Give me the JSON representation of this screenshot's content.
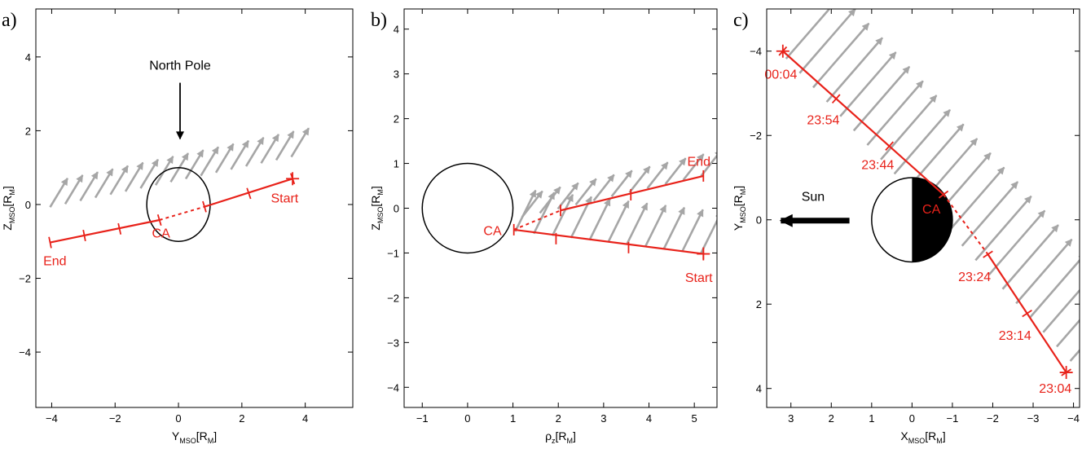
{
  "colors": {
    "trajectory": "#e8221a",
    "field": "#a6a6a6",
    "planet_stroke": "#000000",
    "nightside": "#000000"
  },
  "chart_data": [
    {
      "type": "vector-trajectory",
      "panel": "a)",
      "xlabel": {
        "main": "Y",
        "sub": "MSO",
        "unit": "[R",
        "unit_sub": "M",
        "close": "]"
      },
      "ylabel": {
        "main": "Z",
        "sub": "MSO",
        "unit": "[R",
        "unit_sub": "M",
        "close": "]"
      },
      "xlim": [
        -4.5,
        5.5
      ],
      "ylim": [
        -5.5,
        5.3
      ],
      "xticks": [
        -4,
        -2,
        0,
        2,
        4
      ],
      "xtick_labels": [
        "−4",
        "−2",
        "0",
        "2",
        "4"
      ],
      "yticks": [
        -4,
        -2,
        0,
        2,
        4
      ],
      "ytick_labels": [
        "−4",
        "−2",
        "0",
        "2",
        "4"
      ],
      "planet": {
        "cx": 0,
        "cy": 0,
        "r": 1,
        "style": "outline"
      },
      "trajectory_solid": [
        [
          [
            -4.05,
            -1.03
          ],
          [
            -0.6,
            -0.42
          ]
        ],
        [
          [
            0.82,
            -0.06
          ],
          [
            3.6,
            0.7
          ]
        ]
      ],
      "trajectory_dashed": [
        [
          -0.6,
          -0.42
        ],
        [
          0.82,
          -0.06
        ]
      ],
      "ticks": [
        [
          -4.05,
          -1.03
        ],
        [
          -2.97,
          -0.84
        ],
        [
          -1.86,
          -0.66
        ],
        [
          -0.6,
          -0.42
        ],
        [
          0.82,
          -0.06
        ],
        [
          2.22,
          0.3
        ],
        [
          3.6,
          0.7
        ]
      ],
      "tick_style": "perpendicular",
      "end_cross": [
        3.6,
        0.7
      ],
      "field_arrows": {
        "y0": [
          -4.05,
          0.58
        ],
        "y1": [
          3.56,
          1.94
        ],
        "n": 17,
        "dx": 0.55,
        "dy": 0.78,
        "base_offset": -0.65
      },
      "labels": [
        {
          "text": "End",
          "x": -3.9,
          "y": -1.65,
          "color": "red",
          "anchor": "middle"
        },
        {
          "text": "CA",
          "x": -0.55,
          "y": -0.9,
          "color": "red",
          "anchor": "middle"
        },
        {
          "text": "Start",
          "x": 3.35,
          "y": 0.05,
          "color": "red",
          "anchor": "middle"
        },
        {
          "text": "North Pole",
          "x": 0.05,
          "y": 3.65,
          "color": "black",
          "anchor": "middle"
        }
      ],
      "pointer": {
        "from": [
          0.05,
          3.3
        ],
        "to": [
          0.05,
          1.78
        ]
      }
    },
    {
      "type": "vector-trajectory",
      "panel": "b)",
      "xlabel": {
        "main": "ρ",
        "sub": "z",
        "unit": "[R",
        "unit_sub": "M",
        "close": "]"
      },
      "ylabel": {
        "main": "Z",
        "sub": "MSO",
        "unit": "[R",
        "unit_sub": "M",
        "close": "]"
      },
      "xlim": [
        -1.4,
        5.5
      ],
      "ylim": [
        -4.45,
        4.45
      ],
      "xticks": [
        -1,
        0,
        1,
        2,
        3,
        4,
        5
      ],
      "xtick_labels": [
        "−1",
        "0",
        "1",
        "2",
        "3",
        "4",
        "5"
      ],
      "yticks": [
        -4,
        -3,
        -2,
        -1,
        0,
        1,
        2,
        3,
        4
      ],
      "ytick_labels": [
        "−4",
        "−3",
        "−2",
        "−1",
        "0",
        "1",
        "2",
        "3",
        "4"
      ],
      "planet": {
        "cx": 0,
        "cy": 0,
        "r": 1,
        "style": "outline"
      },
      "trajectory_solid": [
        [
          [
            2.05,
            -0.05
          ],
          [
            5.2,
            0.72
          ]
        ],
        [
          [
            1.02,
            -0.48
          ],
          [
            5.2,
            -1.02
          ]
        ]
      ],
      "trajectory_dashed": [
        [
          1.02,
          -0.48
        ],
        [
          2.05,
          -0.05
        ]
      ],
      "ticks": [
        [
          1.02,
          -0.48
        ],
        [
          2.05,
          -0.05
        ],
        [
          3.6,
          0.3
        ],
        [
          5.2,
          0.72
        ],
        [
          1.95,
          -0.68
        ],
        [
          3.55,
          -0.88
        ],
        [
          5.2,
          -1.02
        ]
      ],
      "tick_style": "vertical",
      "end_cross": [
        5.2,
        -1.02
      ],
      "field_arrows_lower": {
        "y0": [
          1.05,
          -0.52
        ],
        "y1": [
          5.15,
          -1.0
        ],
        "n": 11,
        "dx": 0.45,
        "dy": 0.92
      },
      "field_arrows_upper": {
        "y0": [
          1.2,
          -0.2
        ],
        "y1": [
          5.15,
          0.72
        ],
        "n": 11,
        "dx": 0.45,
        "dy": 0.58
      },
      "labels": [
        {
          "text": "End",
          "x": 5.1,
          "y": 0.95,
          "color": "red",
          "anchor": "middle"
        },
        {
          "text": "CA",
          "x": 0.55,
          "y": -0.6,
          "color": "red",
          "anchor": "middle"
        },
        {
          "text": "Start",
          "x": 5.1,
          "y": -1.65,
          "color": "red",
          "anchor": "middle"
        }
      ]
    },
    {
      "type": "vector-trajectory",
      "panel": "c)",
      "xlabel": {
        "main": "X",
        "sub": "MSO",
        "unit": "[R",
        "unit_sub": "M",
        "close": "]"
      },
      "ylabel": {
        "main": "Y",
        "sub": "MSO",
        "unit": "[R",
        "unit_sub": "M",
        "close": "]"
      },
      "x_reversed": true,
      "y_reversed": true,
      "xlim": [
        3.6,
        -4.15
      ],
      "ylim": [
        -5.0,
        4.45
      ],
      "xticks": [
        3,
        2,
        1,
        0,
        -1,
        -2,
        -3,
        -4
      ],
      "xtick_labels": [
        "3",
        "2",
        "1",
        "0",
        "−1",
        "−2",
        "−3",
        "−4"
      ],
      "yticks": [
        -4,
        -2,
        0,
        2,
        4
      ],
      "ytick_labels": [
        "−4",
        "−2",
        "0",
        "2",
        "4"
      ],
      "planet": {
        "cx": 0,
        "cy": 0,
        "r": 1,
        "style": "half-dark"
      },
      "trajectory_solid": [
        [
          [
            3.2,
            -4.0
          ],
          [
            -0.78,
            -0.6
          ]
        ],
        [
          [
            -1.88,
            0.82
          ],
          [
            -3.82,
            3.62
          ]
        ]
      ],
      "trajectory_dashed": [
        [
          -0.78,
          -0.6
        ],
        [
          -1.88,
          0.82
        ]
      ],
      "ticks": [
        [
          3.2,
          -4.0
        ],
        [
          1.88,
          -2.87
        ],
        [
          0.56,
          -1.75
        ],
        [
          -0.78,
          -0.6
        ],
        [
          -1.88,
          0.82
        ],
        [
          -2.85,
          2.22
        ],
        [
          -3.82,
          3.62
        ]
      ],
      "tick_style": "perpendicular",
      "end_crosses": [
        [
          3.2,
          -4.0
        ],
        [
          -3.82,
          3.62
        ]
      ],
      "field_arrows": {
        "y0": [
          3.12,
          -3.82
        ],
        "y1": [
          -3.92,
          3.35
        ],
        "n": 22,
        "dx": -1.38,
        "dy": -1.52
      },
      "labels": [
        {
          "text": "00:04",
          "x": 3.25,
          "y": -3.35,
          "color": "red",
          "anchor": "middle"
        },
        {
          "text": "23:54",
          "x": 2.2,
          "y": -2.27,
          "color": "red",
          "anchor": "middle"
        },
        {
          "text": "23:44",
          "x": 0.85,
          "y": -1.2,
          "color": "red",
          "anchor": "middle"
        },
        {
          "text": "CA",
          "x": -0.48,
          "y": -0.15,
          "color": "red",
          "anchor": "middle"
        },
        {
          "text": "23:24",
          "x": -1.55,
          "y": 1.45,
          "color": "red",
          "anchor": "middle"
        },
        {
          "text": "23:14",
          "x": -2.55,
          "y": 2.85,
          "color": "red",
          "anchor": "middle"
        },
        {
          "text": "23:04",
          "x": -3.55,
          "y": 4.1,
          "color": "red",
          "anchor": "middle"
        },
        {
          "text": "Sun",
          "x": 2.45,
          "y": -0.45,
          "color": "black",
          "anchor": "middle"
        }
      ],
      "sun_arrow": {
        "from": [
          1.55,
          0.02
        ],
        "to": [
          3.25,
          0.02
        ]
      }
    }
  ]
}
